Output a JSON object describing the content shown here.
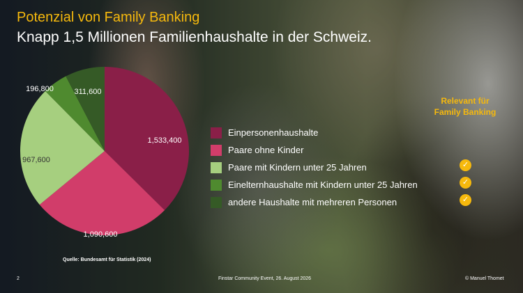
{
  "header": {
    "title": "Potenzial von Family Banking",
    "subtitle": "Knapp 1,5 Millionen Familienhaushalte in der Schweiz."
  },
  "chart_data": {
    "type": "pie",
    "title": "",
    "categories": [
      "Einpersonenhaushalte",
      "Paare ohne Kinder",
      "Paare mit Kindern unter 25 Jahren",
      "Einelternhaushalte mit Kindern unter 25 Jahren",
      "andere Haushalte mit mehreren Personen"
    ],
    "values": [
      1533400,
      1090600,
      967600,
      196800,
      311600
    ],
    "value_labels": [
      "1,533,400",
      "1,090,600",
      "967,600",
      "196,800",
      "311,600"
    ],
    "colors": [
      "#8a1f48",
      "#d13d6a",
      "#a6cf7f",
      "#4f8a2f",
      "#355a26"
    ],
    "label_colors": [
      "#ffffff",
      "#ffffff",
      "#333333",
      "#ffffff",
      "#ffffff"
    ],
    "start_angle_deg": 0,
    "direction": "clockwise",
    "legend_position": "right"
  },
  "relevant": {
    "label_line1": "Relevant für",
    "label_line2": "Family Banking",
    "check_glyph": "✓",
    "checked_categories": [
      2,
      3,
      4
    ]
  },
  "source": "Quelle: Bundesamt für Statistik (2024)",
  "footer": {
    "page": "2",
    "event": "Finstar Community Event, 26. August 2026",
    "copyright": "© Manuel Thomet"
  },
  "colors": {
    "accent": "#f6b90d"
  }
}
